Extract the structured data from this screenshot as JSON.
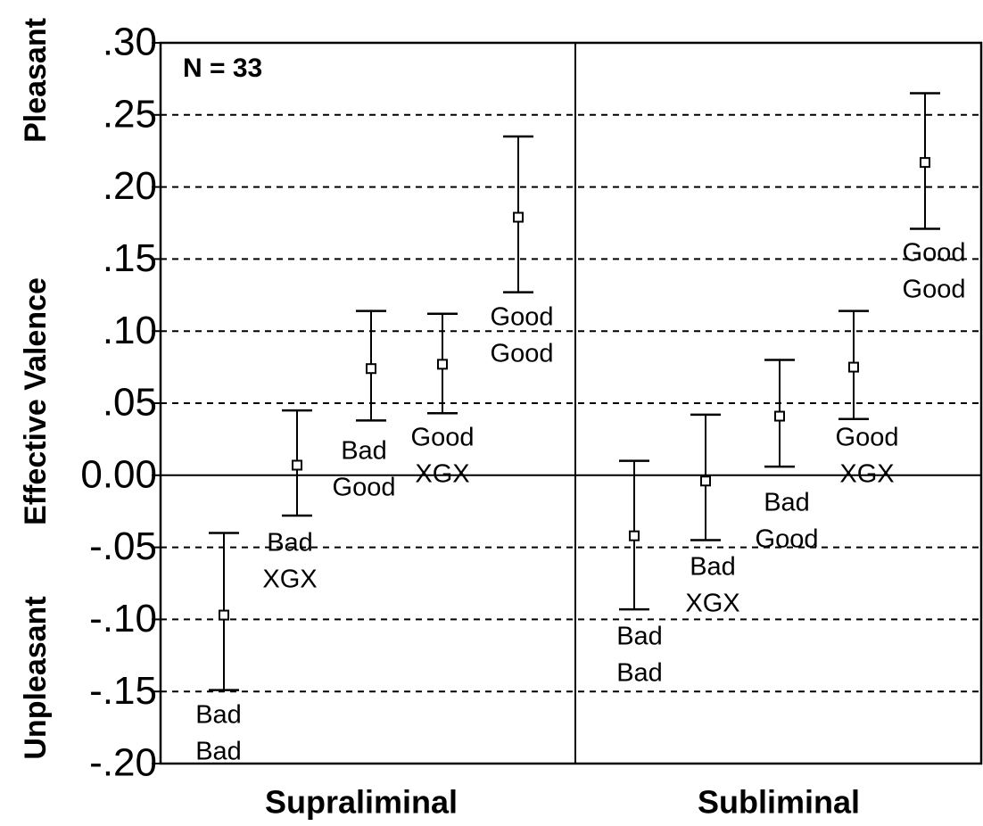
{
  "chart_data": {
    "type": "errorbar",
    "annotation": "N = 33",
    "y_label": "Effective Valence",
    "y_label_top": "Pleasant",
    "y_label_bottom": "Unpleasant",
    "categories": [
      "Supraliminal",
      "Subliminal"
    ],
    "ylim": [
      -0.2,
      0.3
    ],
    "yticks": [
      {
        "value": 0.3,
        "label": ".30"
      },
      {
        "value": 0.25,
        "label": ".25"
      },
      {
        "value": 0.2,
        "label": ".20"
      },
      {
        "value": 0.15,
        "label": ".15"
      },
      {
        "value": 0.1,
        "label": ".10"
      },
      {
        "value": 0.05,
        "label": ".05"
      },
      {
        "value": 0,
        "label": "0.00"
      },
      {
        "value": -0.05,
        "label": "-.05"
      },
      {
        "value": -0.1,
        "label": "-.10"
      },
      {
        "value": -0.15,
        "label": "-.15"
      },
      {
        "value": -0.2,
        "label": "-.20"
      }
    ],
    "grid": true,
    "series": [
      {
        "name": [
          "Bad",
          "Bad"
        ],
        "color": "#000000",
        "values": [
          -0.097,
          -0.042
        ],
        "upper": [
          -0.04,
          0.01
        ],
        "lower": [
          -0.149,
          -0.093
        ]
      },
      {
        "name": [
          "Bad",
          "XGX"
        ],
        "color": "#000000",
        "values": [
          0.007,
          -0.004
        ],
        "upper": [
          0.045,
          0.042
        ],
        "lower": [
          -0.028,
          -0.045
        ]
      },
      {
        "name": [
          "Bad",
          "Good"
        ],
        "color": "#000000",
        "values": [
          0.074,
          0.041
        ],
        "upper": [
          0.114,
          0.08
        ],
        "lower": [
          0.038,
          0.006
        ]
      },
      {
        "name": [
          "Good",
          "XGX"
        ],
        "color": "#000000",
        "values": [
          0.077,
          0.075
        ],
        "upper": [
          0.112,
          0.114
        ],
        "lower": [
          0.043,
          0.039
        ]
      },
      {
        "name": [
          "Good",
          "Good"
        ],
        "color": "#000000",
        "values": [
          0.179,
          0.217
        ],
        "upper": [
          0.235,
          0.265
        ],
        "lower": [
          0.127,
          0.171
        ]
      }
    ]
  }
}
